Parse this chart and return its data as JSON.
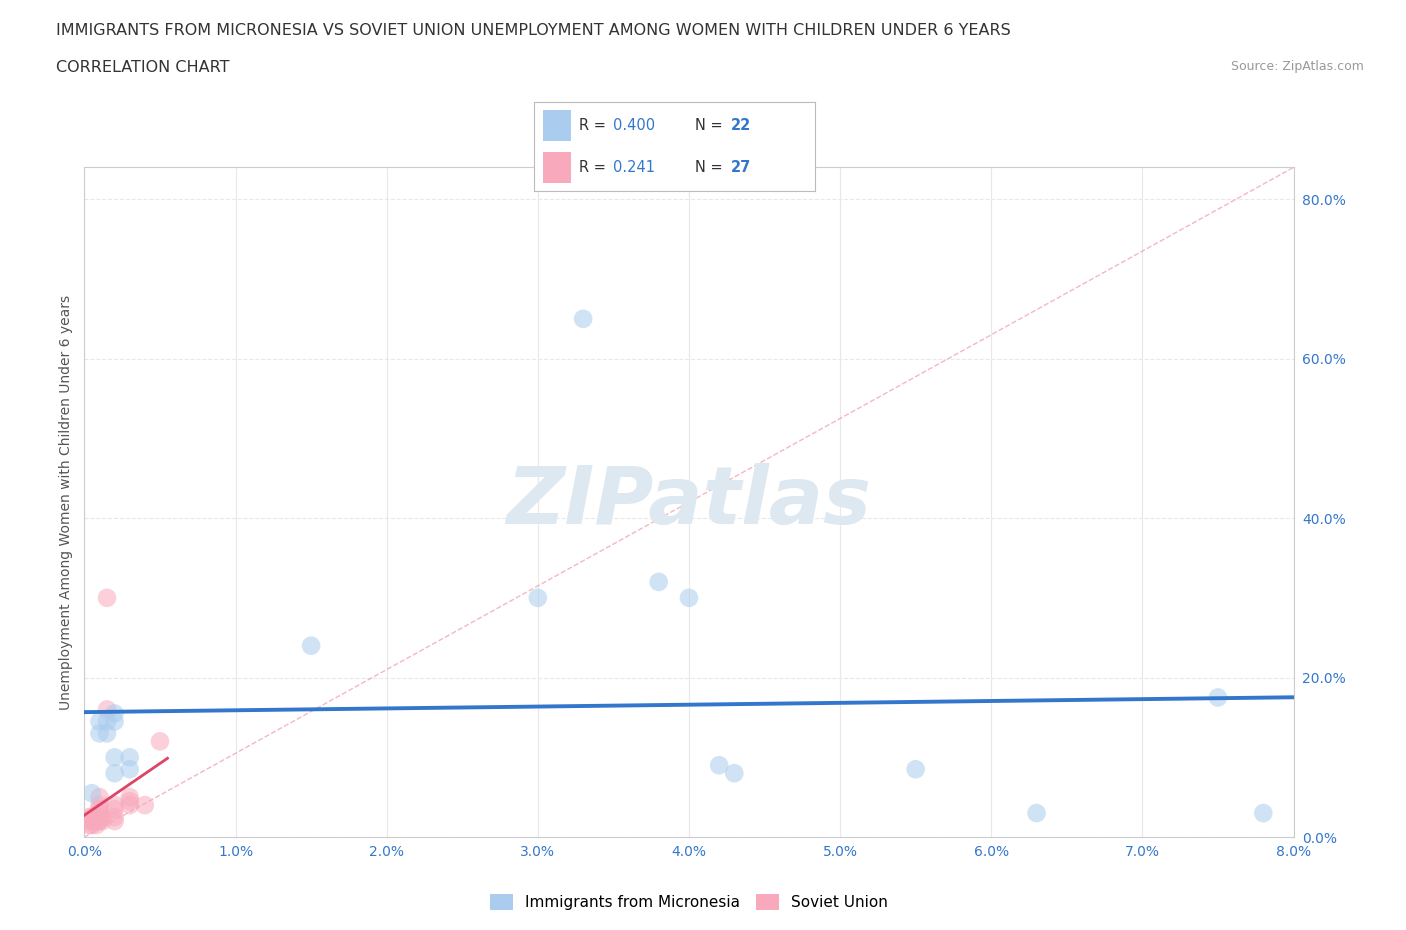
{
  "title_line1": "IMMIGRANTS FROM MICRONESIA VS SOVIET UNION UNEMPLOYMENT AMONG WOMEN WITH CHILDREN UNDER 6 YEARS",
  "title_line2": "CORRELATION CHART",
  "source": "Source: ZipAtlas.com",
  "xlabel_label": "Immigrants from Micronesia",
  "ylabel_label": "Unemployment Among Women with Children Under 6 years",
  "xlim": [
    0.0,
    0.08
  ],
  "ylim": [
    0.0,
    0.84
  ],
  "xticks": [
    0.0,
    0.01,
    0.02,
    0.03,
    0.04,
    0.05,
    0.06,
    0.07,
    0.08
  ],
  "yticks": [
    0.0,
    0.2,
    0.4,
    0.6,
    0.8
  ],
  "xtick_labels": [
    "0.0%",
    "1.0%",
    "2.0%",
    "3.0%",
    "4.0%",
    "5.0%",
    "6.0%",
    "7.0%",
    "8.0%"
  ],
  "ytick_labels": [
    "0.0%",
    "20.0%",
    "40.0%",
    "60.0%",
    "80.0%"
  ],
  "blue_x": [
    0.0005,
    0.001,
    0.001,
    0.0015,
    0.0015,
    0.002,
    0.002,
    0.002,
    0.002,
    0.003,
    0.003,
    0.015,
    0.03,
    0.033,
    0.038,
    0.04,
    0.042,
    0.043,
    0.055,
    0.063,
    0.075,
    0.078
  ],
  "blue_y": [
    0.055,
    0.13,
    0.145,
    0.13,
    0.145,
    0.08,
    0.1,
    0.145,
    0.155,
    0.1,
    0.085,
    0.24,
    0.3,
    0.65,
    0.32,
    0.3,
    0.09,
    0.08,
    0.085,
    0.03,
    0.175,
    0.03
  ],
  "pink_x": [
    0.0003,
    0.0003,
    0.0003,
    0.0005,
    0.0005,
    0.0005,
    0.0008,
    0.0008,
    0.001,
    0.001,
    0.001,
    0.001,
    0.001,
    0.001,
    0.0012,
    0.0012,
    0.0015,
    0.0015,
    0.002,
    0.002,
    0.002,
    0.002,
    0.003,
    0.003,
    0.003,
    0.004,
    0.005
  ],
  "pink_y": [
    0.015,
    0.02,
    0.025,
    0.015,
    0.02,
    0.025,
    0.015,
    0.02,
    0.02,
    0.025,
    0.03,
    0.035,
    0.04,
    0.05,
    0.02,
    0.025,
    0.16,
    0.3,
    0.02,
    0.025,
    0.035,
    0.04,
    0.04,
    0.045,
    0.05,
    0.04,
    0.12
  ],
  "blue_color": "#aaccee",
  "pink_color": "#f8aabc",
  "blue_trend_color": "#3377cc",
  "pink_trend_color": "#dd4466",
  "diag_color": "#ee8899",
  "blue_R": 0.4,
  "blue_N": 22,
  "pink_R": 0.241,
  "pink_N": 27,
  "legend_R_color": "#3377cc",
  "watermark": "ZIPatlas",
  "watermark_color": "#dde8f0",
  "bg_color": "#ffffff",
  "grid_color": "#e8e8e8",
  "marker_size": 180,
  "marker_alpha": 0.55
}
